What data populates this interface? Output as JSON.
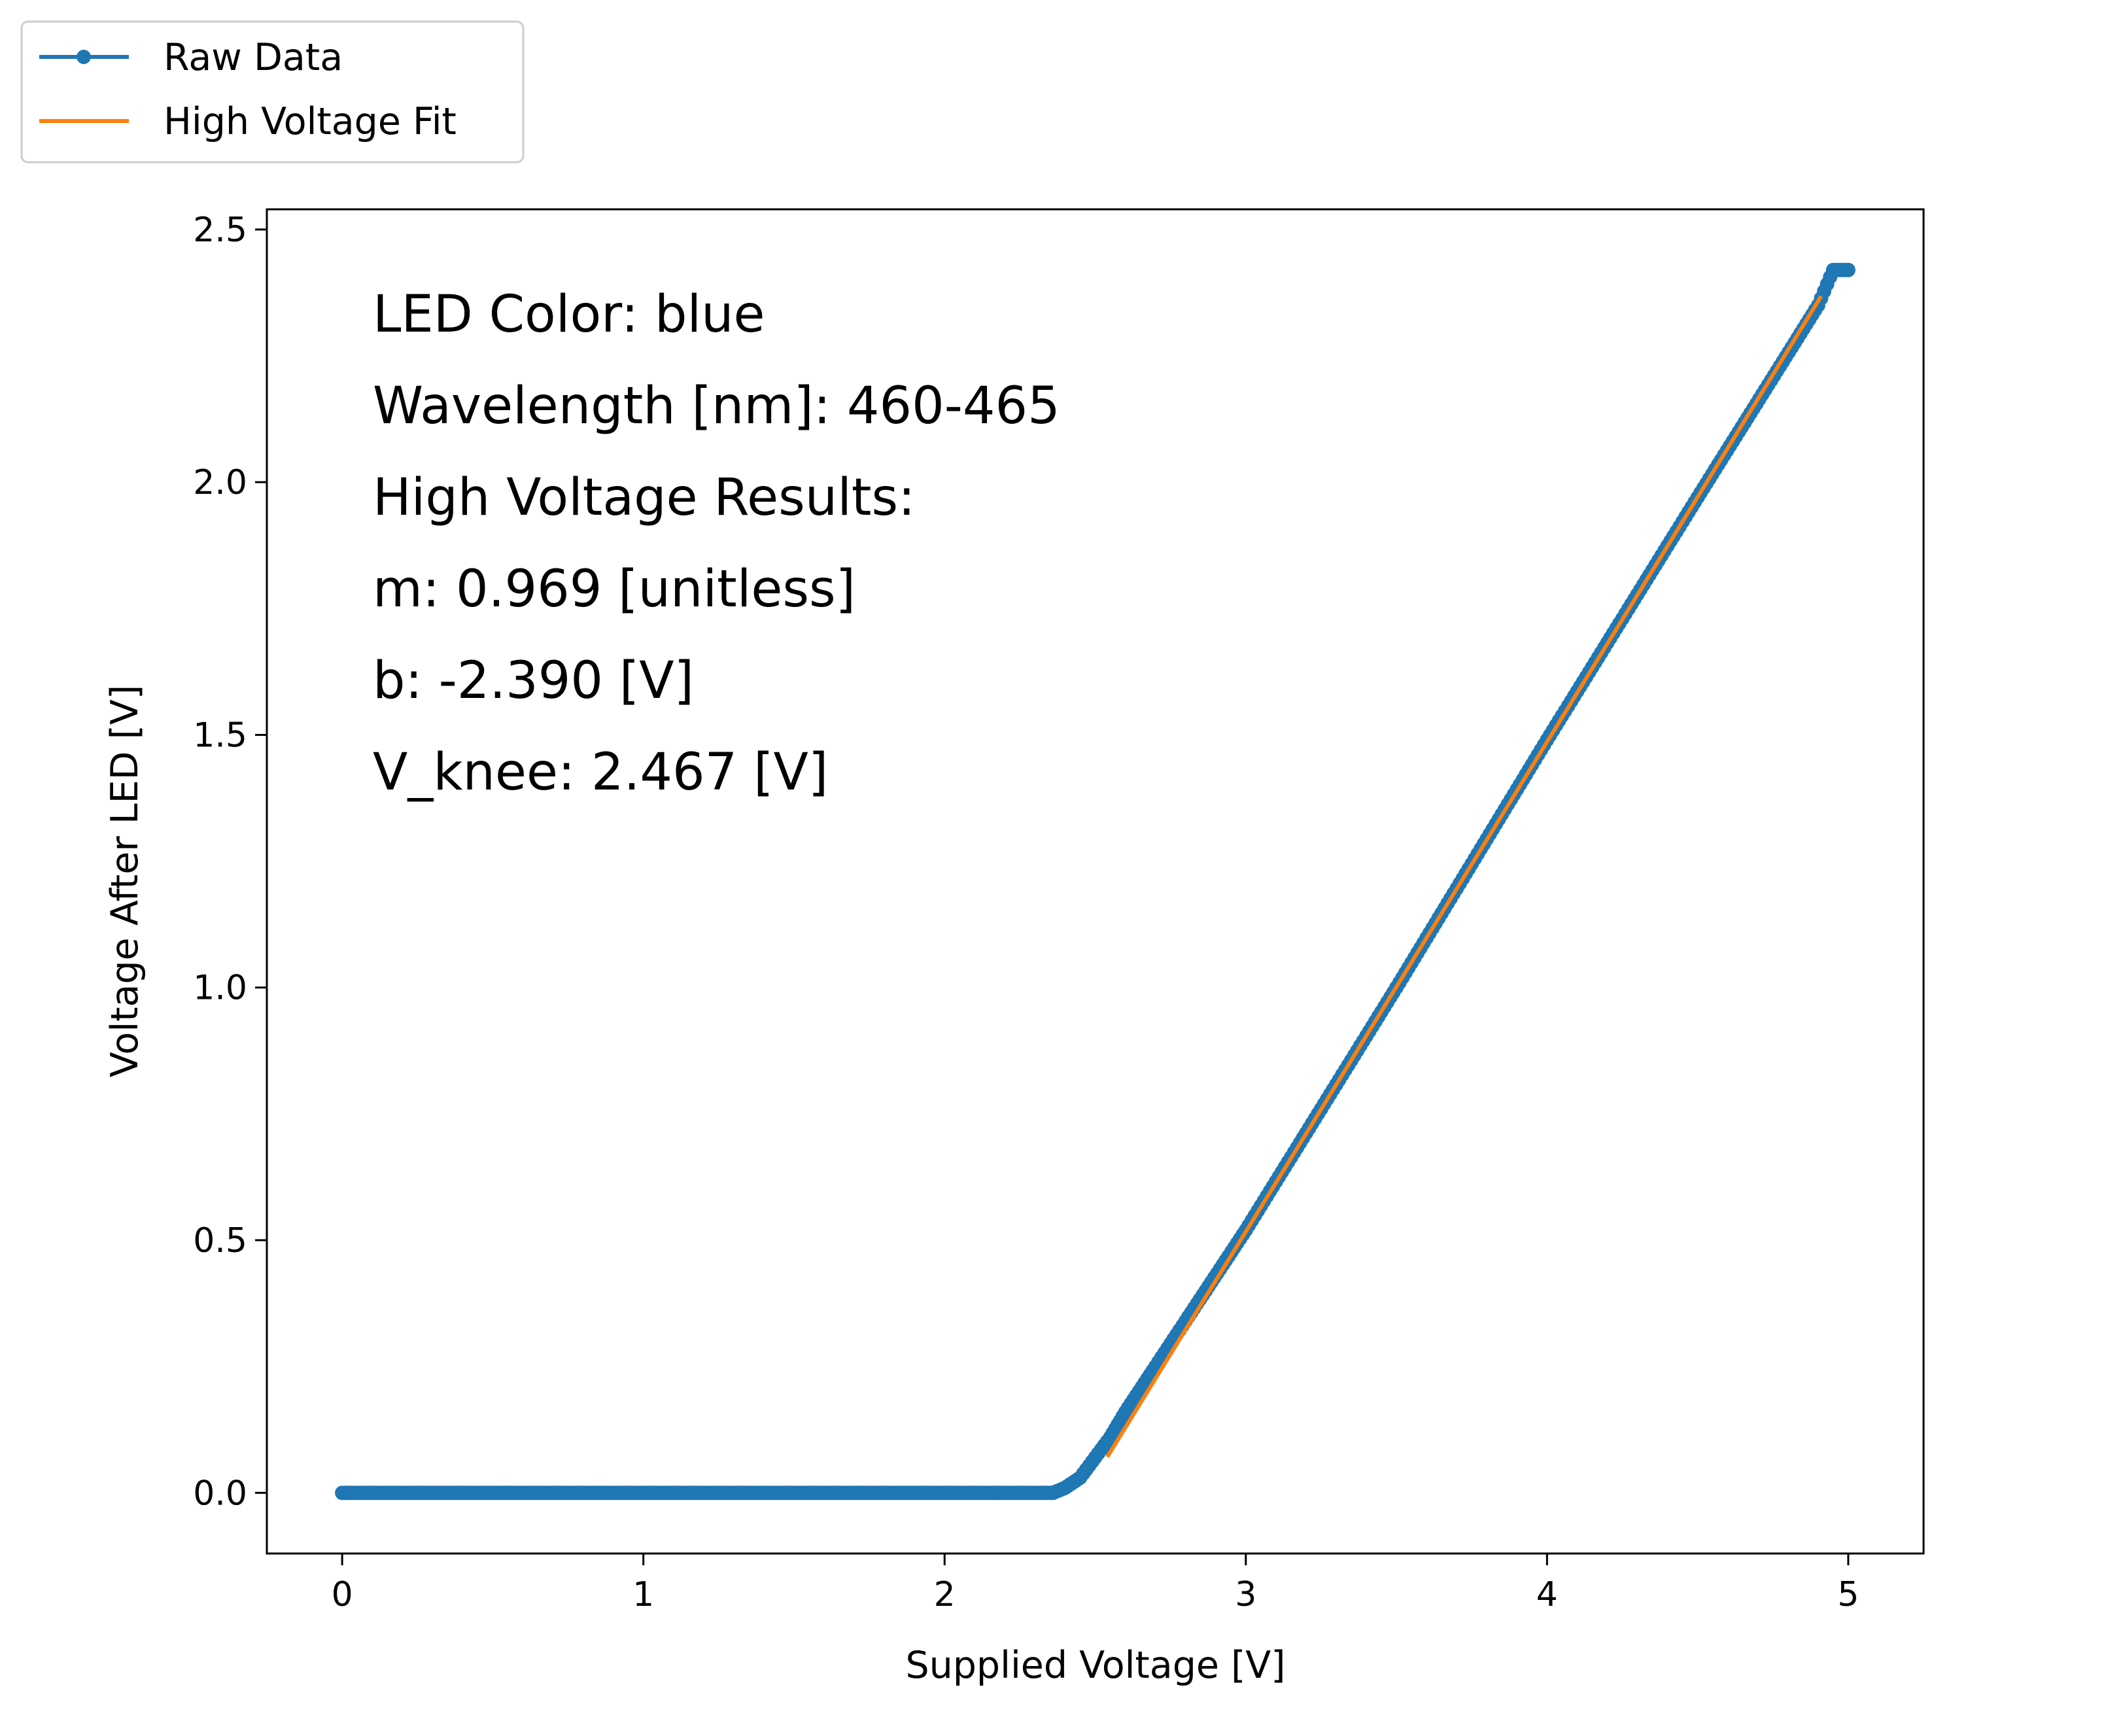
{
  "chart_data": {
    "type": "line",
    "xlabel": "Supplied Voltage [V]",
    "ylabel": "Voltage After LED [V]",
    "xlim": [
      -0.25,
      5.25
    ],
    "ylim": [
      -0.12,
      2.54
    ],
    "x_ticks": [
      0,
      1,
      2,
      3,
      4,
      5
    ],
    "x_tick_labels": [
      "0",
      "1",
      "2",
      "3",
      "4",
      "5"
    ],
    "y_ticks": [
      0.0,
      0.5,
      1.0,
      1.5,
      2.0,
      2.5
    ],
    "y_tick_labels": [
      "0.0",
      "0.5",
      "1.0",
      "1.5",
      "2.0",
      "2.5"
    ],
    "grid": false,
    "legend_placement": "upper-left (outside plot)",
    "annotations": [
      "LED Color: blue",
      "Wavelength [nm]: 460-465",
      "High Voltage Results:",
      "m: 0.969 [unitless]",
      "b: -2.390 [V]",
      "V_knee: 2.467 [V]"
    ],
    "series": [
      {
        "name": "Raw Data",
        "color": "#1f77b4",
        "marker": "circle",
        "x": [
          0.0,
          0.5,
          1.0,
          1.5,
          2.0,
          2.36,
          2.4,
          2.45,
          2.5,
          2.55,
          2.6,
          2.7,
          2.8,
          3.0,
          3.5,
          4.0,
          4.5,
          4.9,
          4.95,
          4.97,
          5.0
        ],
        "y": [
          0.0,
          0.0,
          0.0,
          0.0,
          0.0,
          0.0,
          0.01,
          0.03,
          0.07,
          0.11,
          0.16,
          0.25,
          0.34,
          0.52,
          1.0,
          1.49,
          1.97,
          2.35,
          2.42,
          2.42,
          2.42
        ]
      },
      {
        "name": "High Voltage Fit",
        "color": "#ff7f0e",
        "x": [
          2.54,
          4.91
        ],
        "y": [
          0.071,
          2.368
        ]
      }
    ]
  }
}
